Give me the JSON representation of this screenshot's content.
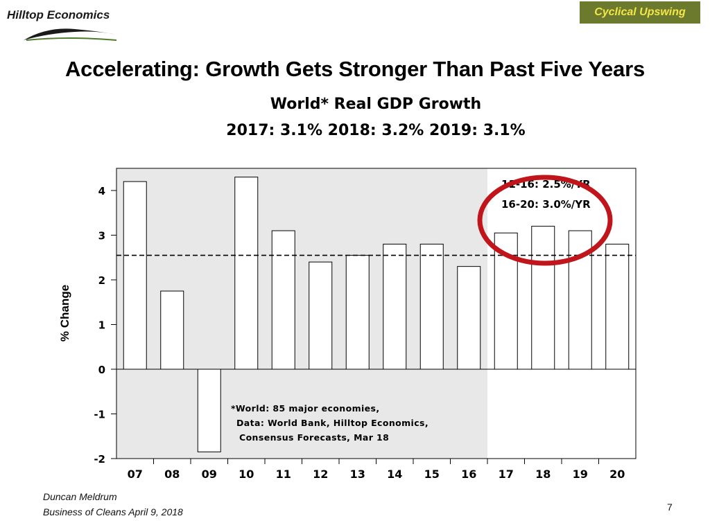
{
  "header": {
    "logo_text": "Hilltop Economics",
    "badge": "Cyclical Upswing",
    "badge_colors": {
      "background": "#6b7a2c",
      "text": "#f4e64a"
    }
  },
  "slide": {
    "headline": "Accelerating: Growth Gets Stronger Than Past Five Years"
  },
  "chart_data": {
    "type": "bar",
    "title": "World* Real GDP Growth",
    "subtitle": "2017: 3.1%  2018: 3.2%  2019: 3.1%",
    "ylabel": "% Change",
    "xlabel": "",
    "categories": [
      "07",
      "08",
      "09",
      "10",
      "11",
      "12",
      "13",
      "14",
      "15",
      "16",
      "17",
      "18",
      "19",
      "20"
    ],
    "values": [
      4.2,
      1.75,
      -1.85,
      4.3,
      3.1,
      2.4,
      2.55,
      2.8,
      2.8,
      2.3,
      3.05,
      3.2,
      3.1,
      2.8
    ],
    "ylim": [
      -2.2,
      4.5
    ],
    "yticks": [
      -2,
      -1,
      0,
      1,
      2,
      3,
      4
    ],
    "reference_line": 2.55,
    "shaded_categories": [
      "07",
      "08",
      "09",
      "10",
      "11",
      "12",
      "13",
      "14",
      "15",
      "16"
    ],
    "forecast_categories": [
      "17",
      "18",
      "19",
      "20"
    ],
    "annotations": [
      "11-16: 2.5%/YR",
      "16-20: 3.0%/YR"
    ],
    "footnote": [
      "*World: 85 major economies,",
      "Data: World Bank, Hilltop Economics,",
      "Consensus Forecasts, Mar 18"
    ],
    "grid": false,
    "colors": {
      "shade": "#e8e8e8",
      "bar": "#ffffff",
      "highlight_circle": "#c0151b"
    }
  },
  "footer": {
    "author": "Duncan Meldrum",
    "event": "Business of Cleans April 9, 2018",
    "page_number": "7"
  }
}
